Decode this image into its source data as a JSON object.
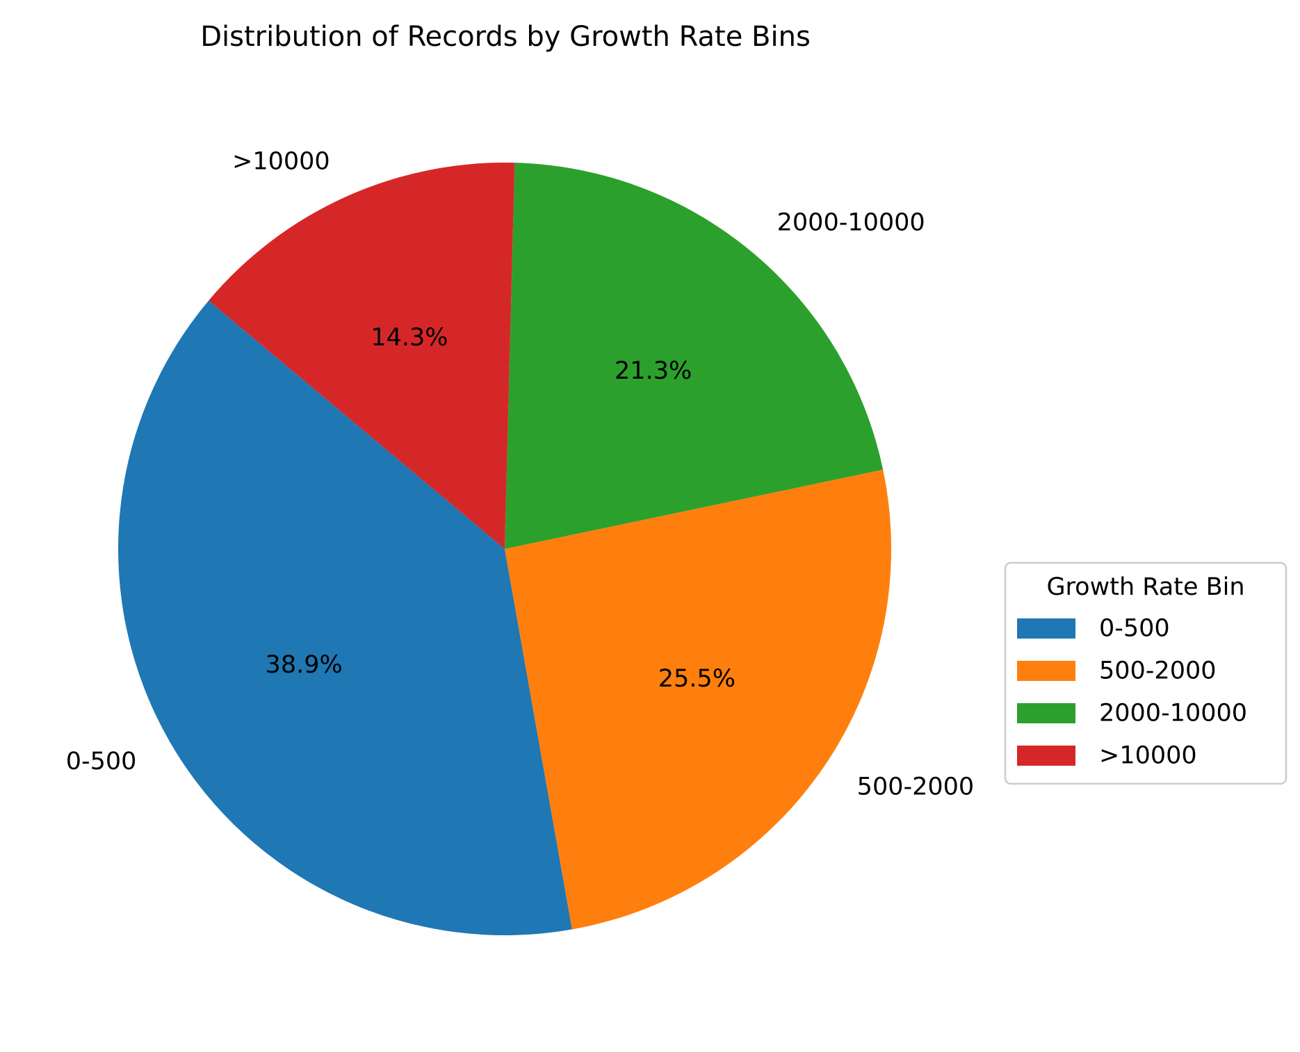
{
  "chart_data": {
    "type": "pie",
    "title": "Distribution of Records by Growth Rate Bins",
    "categories": [
      "0-500",
      "500-2000",
      "2000-10000",
      ">10000"
    ],
    "values": [
      38.9,
      25.5,
      21.3,
      14.3
    ],
    "value_labels": [
      "38.9%",
      "25.5%",
      "21.3%",
      "14.3%"
    ],
    "colors": [
      "#1f77b4",
      "#ff7f0e",
      "#2ca02c",
      "#d62728"
    ],
    "start_angle_deg": 140,
    "direction": "counterclockwise",
    "legend": {
      "title": "Growth Rate Bin",
      "placement": "center-right",
      "entries": [
        "0-500",
        "500-2000",
        "2000-10000",
        ">10000"
      ]
    }
  }
}
